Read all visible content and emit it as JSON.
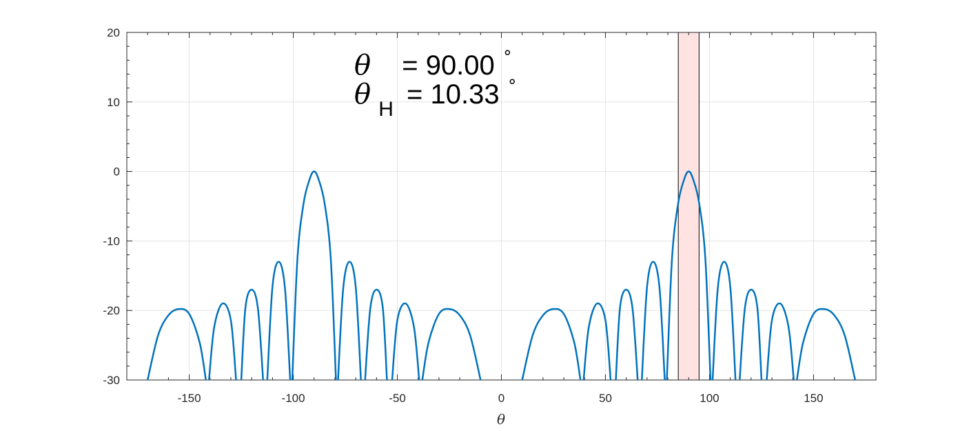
{
  "chart_data": {
    "type": "line",
    "xlabel": "θ",
    "ylabel": "",
    "title": "",
    "xlim": [
      -180,
      180
    ],
    "ylim": [
      -30,
      20
    ],
    "x_ticks": [
      -150,
      -100,
      -50,
      0,
      50,
      100,
      150
    ],
    "y_ticks": [
      -30,
      -20,
      -10,
      0,
      10,
      20
    ],
    "x_tick_labels": [
      "-150",
      "-100",
      "-50",
      "0",
      "50",
      "100",
      "150"
    ],
    "y_tick_labels": [
      "-30",
      "-20",
      "-10",
      "0",
      "10",
      "20"
    ],
    "grid": true,
    "series_color": "#0072BD",
    "highlight": {
      "x_range": [
        85,
        95
      ],
      "fill": "#ffe2e2",
      "stroke": "#000000"
    },
    "series": [
      {
        "lobes": [
          {
            "x": [
              -170,
              -165,
              -160,
              -155,
              -150,
              -145,
              -142
            ],
            "y": [
              -30,
              -23.6,
              -20.7,
              -19.8,
              -20.5,
              -24.6,
              -30
            ]
          },
          {
            "x": [
              -140.5,
              -138,
              -134,
              -130,
              -127.5
            ],
            "y": [
              -30,
              -22.4,
              -19,
              -21.4,
              -30
            ]
          },
          {
            "x": [
              -125,
              -123,
              -120,
              -117,
              -114.5
            ],
            "y": [
              -30,
              -19.6,
              -17,
              -19.7,
              -30
            ]
          },
          {
            "x": [
              -112.5,
              -110,
              -107,
              -104,
              -101.5
            ],
            "y": [
              -30,
              -16.6,
              -13,
              -16.8,
              -30
            ]
          },
          {
            "x": [
              -100.5,
              -98,
              -95,
              -92,
              -90,
              -88,
              -85,
              -82,
              -79.5
            ],
            "y": [
              -30,
              -12.5,
              -4.5,
              -1,
              0,
              -1,
              -4.5,
              -12.5,
              -30
            ]
          },
          {
            "x": [
              -78.5,
              -76,
              -73,
              -70,
              -67.5
            ],
            "y": [
              -30,
              -16.8,
              -13,
              -16.6,
              -30
            ]
          },
          {
            "x": [
              -65.5,
              -63,
              -60,
              -57,
              -55
            ],
            "y": [
              -30,
              -19.7,
              -17,
              -19.6,
              -30
            ]
          },
          {
            "x": [
              -52.5,
              -50,
              -46,
              -42,
              -39.5
            ],
            "y": [
              -30,
              -21.4,
              -19,
              -22.4,
              -30
            ]
          },
          {
            "x": [
              -38,
              -35,
              -30,
              -25,
              -20,
              -15,
              -10
            ],
            "y": [
              -30,
              -24.6,
              -20.5,
              -19.8,
              -20.7,
              -23.6,
              -30
            ]
          },
          {
            "x": [
              10,
              15,
              20,
              25,
              30,
              35,
              38
            ],
            "y": [
              -30,
              -23.6,
              -20.7,
              -19.8,
              -20.5,
              -24.6,
              -30
            ]
          },
          {
            "x": [
              39.5,
              42,
              46,
              50,
              52.5
            ],
            "y": [
              -30,
              -22.4,
              -19,
              -21.4,
              -30
            ]
          },
          {
            "x": [
              55,
              57,
              60,
              63,
              65.5
            ],
            "y": [
              -30,
              -19.6,
              -17,
              -19.7,
              -30
            ]
          },
          {
            "x": [
              67.5,
              70,
              73,
              76,
              78.5
            ],
            "y": [
              -30,
              -16.6,
              -13,
              -16.8,
              -30
            ]
          },
          {
            "x": [
              79.5,
              82,
              85,
              88,
              90,
              92,
              95,
              98,
              100.5
            ],
            "y": [
              -30,
              -12.5,
              -4.5,
              -1,
              0,
              -1,
              -4.5,
              -12.5,
              -30
            ]
          },
          {
            "x": [
              101.5,
              104,
              107,
              110,
              112.5
            ],
            "y": [
              -30,
              -16.8,
              -13,
              -16.6,
              -30
            ]
          },
          {
            "x": [
              114.5,
              117,
              120,
              123,
              125
            ],
            "y": [
              -30,
              -19.7,
              -17,
              -19.6,
              -30
            ]
          },
          {
            "x": [
              127.5,
              130,
              134,
              138,
              140.5
            ],
            "y": [
              -30,
              -21.4,
              -19,
              -22.4,
              -30
            ]
          },
          {
            "x": [
              142,
              145,
              150,
              155,
              160,
              165,
              170
            ],
            "y": [
              -30,
              -24.6,
              -20.5,
              -19.8,
              -20.7,
              -23.6,
              -30
            ]
          }
        ]
      }
    ],
    "annotations": {
      "line1_symbol": "θ",
      "line1_value": "= 90.00",
      "line1_unit": "∘",
      "line2_symbol": "θ",
      "line2_subscript": "H",
      "line2_value": "= 10.33",
      "line2_unit": "∘"
    }
  }
}
